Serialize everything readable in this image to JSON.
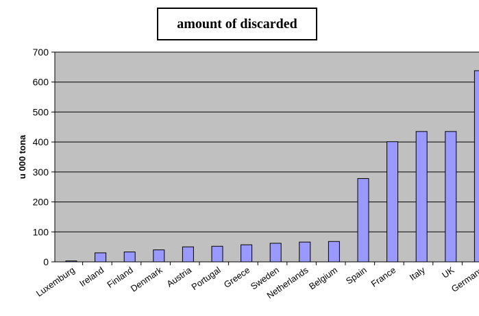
{
  "chart_data": {
    "type": "bar",
    "title": "amount of discarded",
    "xlabel": "",
    "ylabel": "u 000 tona",
    "ylim": [
      0,
      700
    ],
    "yticks": [
      0,
      100,
      200,
      300,
      400,
      500,
      600,
      700
    ],
    "grid": true,
    "legend": "none",
    "categories": [
      "Luxemburg",
      "Ireland",
      "Finland",
      "Denmark",
      "Austria",
      "Portugal",
      "Greece",
      "Sweden",
      "Netherlands",
      "Belgium",
      "Spain",
      "France",
      "Italy",
      "UK",
      "Germany"
    ],
    "values": [
      3,
      30,
      33,
      40,
      50,
      52,
      57,
      62,
      66,
      68,
      278,
      401,
      435,
      435,
      638
    ],
    "colors": {
      "plot_background": "#c0c0c0",
      "bar_fill": "#9999ff",
      "bar_stroke": "#000000",
      "gridline": "#000000"
    }
  }
}
